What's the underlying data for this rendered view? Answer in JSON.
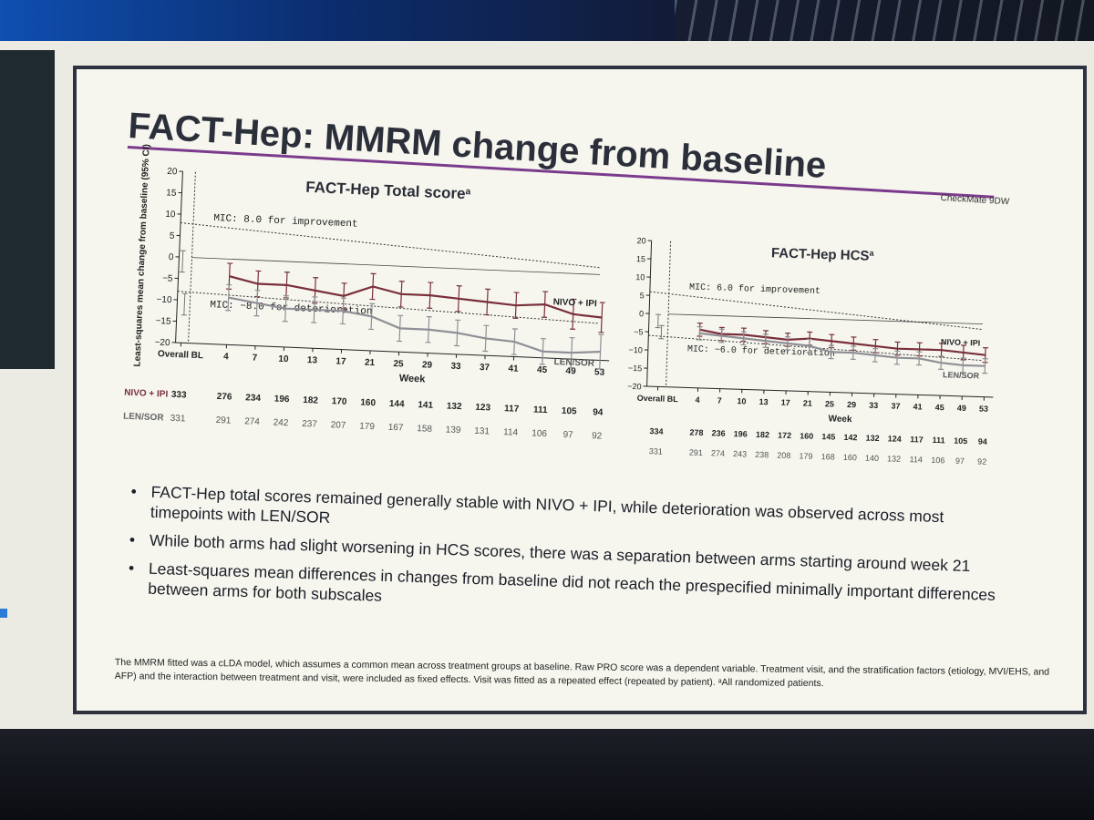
{
  "slide": {
    "title": "FACT-Hep: MMRM change from baseline",
    "brand": "CheckMate 9DW",
    "bullets": [
      "FACT-Hep total scores remained generally stable with NIVO + IPI, while deterioration was observed across most timepoints with LEN/SOR",
      "While both arms had slight worsening in HCS scores, there was a separation between arms starting around week 21",
      "Least-squares mean differences in changes from baseline did not reach the prespecified minimally important differences between arms for both subscales"
    ],
    "footnote": "The MMRM fitted was a cLDA model, which assumes a common mean across treatment groups at baseline. Raw PRO score was a dependent variable. Treatment visit, and the stratification factors (etiology, MVI/EHS, and AFP) and the interaction between treatment and visit, were included as fixed effects. Visit was fitted as a repeated effect (repeated by patient). ᵃAll randomized patients."
  },
  "chart_data": [
    {
      "type": "line",
      "title": "FACT-Hep Total score",
      "title_sup": "a",
      "xlabel": "Week",
      "ylabel": "Least-squares mean change from baseline (95% CI)",
      "ylim": [
        -20,
        20
      ],
      "yticks": [
        "20",
        "15",
        "10",
        "5",
        "0",
        "−5",
        "−10",
        "−15",
        "−20"
      ],
      "x": [
        "Overall BL",
        "4",
        "7",
        "10",
        "13",
        "17",
        "21",
        "25",
        "29",
        "33",
        "37",
        "41",
        "45",
        "49",
        "53"
      ],
      "series": [
        {
          "name": "NIVO + IPI",
          "color": "#7a2f3b",
          "values": [
            null,
            -4,
            -5.5,
            -5.5,
            -6.5,
            -7.5,
            -5,
            -6.5,
            -6.5,
            -7,
            -7.5,
            -8,
            -7.5,
            -9.5,
            -10
          ],
          "ci": [
            null,
            3,
            3,
            3,
            3,
            3,
            3,
            3,
            3,
            3,
            3,
            3,
            3,
            3.5,
            3.5
          ]
        },
        {
          "name": "LEN/SOR",
          "color": "#8f8f96",
          "values": [
            null,
            -9,
            -10,
            -11,
            -11,
            -11,
            -12,
            -14.5,
            -14.5,
            -15,
            -16,
            -16.5,
            -18.5,
            -18.5,
            -18
          ],
          "ci": [
            null,
            3,
            3,
            3,
            3,
            3,
            3,
            3,
            3,
            3,
            3,
            3,
            3,
            3.5,
            4
          ]
        }
      ],
      "baseline_points": [
        -1,
        -11
      ],
      "baseline_ci": 2.5,
      "reference_lines": [
        {
          "y": 8,
          "label": "MIC: 8.0 for improvement"
        },
        {
          "y": -8,
          "label": "MIC: −8.0 for deterioration"
        }
      ],
      "n_at_risk": {
        "NIVO + IPI": [
          "333",
          "276",
          "234",
          "196",
          "182",
          "170",
          "160",
          "144",
          "141",
          "132",
          "123",
          "117",
          "111",
          "105",
          "94"
        ],
        "LEN/SOR": [
          "331",
          "291",
          "274",
          "242",
          "237",
          "207",
          "179",
          "167",
          "158",
          "139",
          "131",
          "114",
          "106",
          "97",
          "92"
        ]
      },
      "n_labels": [
        "NIVO + IPI",
        "LEN/SOR"
      ],
      "series_labels": [
        "NIVO + IPI",
        "LEN/SOR"
      ]
    },
    {
      "type": "line",
      "title": "FACT-Hep HCS",
      "title_sup": "a",
      "xlabel": "Week",
      "ylim": [
        -20,
        20
      ],
      "yticks": [
        "20",
        "15",
        "10",
        "5",
        "0",
        "−5",
        "−10",
        "−15",
        "−20"
      ],
      "x": [
        "Overall BL",
        "4",
        "7",
        "10",
        "13",
        "17",
        "21",
        "25",
        "29",
        "33",
        "37",
        "41",
        "45",
        "49",
        "53"
      ],
      "series": [
        {
          "name": "NIVO + IPI",
          "color": "#7a2f3b",
          "values": [
            null,
            -4,
            -5,
            -5,
            -5.5,
            -6,
            -5.5,
            -6,
            -6.5,
            -7,
            -7.5,
            -7.5,
            -7.5,
            -8,
            -8.5
          ],
          "ci": [
            null,
            1.8,
            1.8,
            1.8,
            1.8,
            1.8,
            1.8,
            1.8,
            1.8,
            1.8,
            1.8,
            1.8,
            1.8,
            2,
            2
          ]
        },
        {
          "name": "LEN/SOR",
          "color": "#8f8f96",
          "values": [
            null,
            -5,
            -5.5,
            -6,
            -6.5,
            -7,
            -7.5,
            -9,
            -9,
            -9.5,
            -10,
            -10,
            -11,
            -11.5,
            -11.5
          ],
          "ci": [
            null,
            1.8,
            1.8,
            1.8,
            1.8,
            1.8,
            1.8,
            1.8,
            1.8,
            1.8,
            1.8,
            1.8,
            1.8,
            2,
            2
          ]
        }
      ],
      "baseline_points": [
        -2,
        -5
      ],
      "baseline_ci": 1.8,
      "reference_lines": [
        {
          "y": 6,
          "label": "MIC: 6.0 for improvement"
        },
        {
          "y": -6,
          "label": "MIC: −6.0 for deterioration"
        }
      ],
      "n_at_risk": {
        "NIVO + IPI": [
          "334",
          "278",
          "236",
          "196",
          "182",
          "172",
          "160",
          "145",
          "142",
          "132",
          "124",
          "117",
          "111",
          "105",
          "94"
        ],
        "LEN/SOR": [
          "331",
          "291",
          "274",
          "243",
          "238",
          "208",
          "179",
          "168",
          "160",
          "140",
          "132",
          "114",
          "106",
          "97",
          "92"
        ]
      },
      "series_labels": [
        "NIVO + IPI",
        "LEN/SOR"
      ]
    }
  ]
}
